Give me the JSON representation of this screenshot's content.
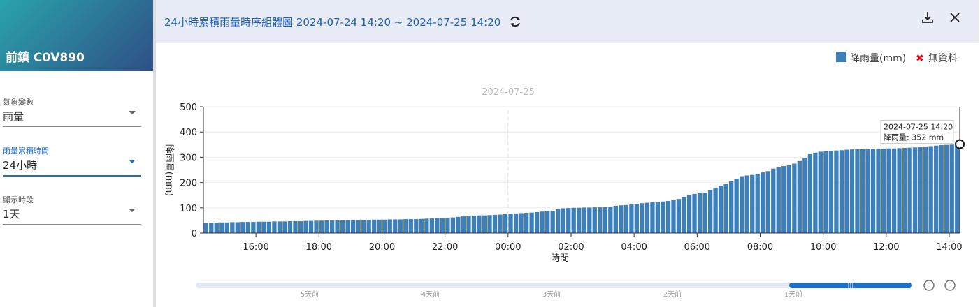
{
  "sidebar": {
    "station": "前鎮 C0V890",
    "fields": [
      {
        "label": "氣象變數",
        "value": "雨量"
      },
      {
        "label": "雨量累積時間",
        "value": "24小時"
      },
      {
        "label": "顯示時段",
        "value": "1天"
      }
    ]
  },
  "header": {
    "title": "24小時累積雨量時序組體圖 2024-07-24 14:20 ~ 2024-07-25 14:20"
  },
  "timeline": {
    "labels": [
      "5天前",
      "4天前",
      "3天前",
      "2天前",
      "1天前"
    ]
  },
  "chart_data": {
    "type": "bar",
    "date_label": "2024-07-25",
    "y_label": "降雨量(mm)",
    "x_label": "時間",
    "no_data_label": "無資料",
    "tooltip": {
      "title": "2024-07-25 14:20",
      "label": "降雨量: 352 mm"
    },
    "x": [
      "2024-07-24 14:30",
      "2024-07-24 14:40",
      "2024-07-24 14:50",
      "2024-07-24 15:00",
      "2024-07-24 15:10",
      "2024-07-24 15:20",
      "2024-07-24 15:30",
      "2024-07-24 15:40",
      "2024-07-24 15:50",
      "2024-07-24 16:00",
      "2024-07-24 16:10",
      "2024-07-24 16:20",
      "2024-07-24 16:30",
      "2024-07-24 16:40",
      "2024-07-24 16:50",
      "2024-07-24 17:00",
      "2024-07-24 17:10",
      "2024-07-24 17:20",
      "2024-07-24 17:30",
      "2024-07-24 17:40",
      "2024-07-24 17:50",
      "2024-07-24 18:00",
      "2024-07-24 18:10",
      "2024-07-24 18:20",
      "2024-07-24 18:30",
      "2024-07-24 18:40",
      "2024-07-24 18:50",
      "2024-07-24 19:00",
      "2024-07-24 19:10",
      "2024-07-24 19:20",
      "2024-07-24 19:30",
      "2024-07-24 19:40",
      "2024-07-24 19:50",
      "2024-07-24 20:00",
      "2024-07-24 20:10",
      "2024-07-24 20:20",
      "2024-07-24 20:30",
      "2024-07-24 20:40",
      "2024-07-24 20:50",
      "2024-07-24 21:00",
      "2024-07-24 21:10",
      "2024-07-24 21:20",
      "2024-07-24 21:30",
      "2024-07-24 21:40",
      "2024-07-24 21:50",
      "2024-07-24 22:00",
      "2024-07-24 22:10",
      "2024-07-24 22:20",
      "2024-07-24 22:30",
      "2024-07-24 22:40",
      "2024-07-24 22:50",
      "2024-07-24 23:00",
      "2024-07-24 23:10",
      "2024-07-24 23:20",
      "2024-07-24 23:30",
      "2024-07-24 23:40",
      "2024-07-24 23:50",
      "2024-07-25 00:00",
      "2024-07-25 00:10",
      "2024-07-25 00:20",
      "2024-07-25 00:30",
      "2024-07-25 00:40",
      "2024-07-25 00:50",
      "2024-07-25 01:00",
      "2024-07-25 01:10",
      "2024-07-25 01:20",
      "2024-07-25 01:30",
      "2024-07-25 01:40",
      "2024-07-25 01:50",
      "2024-07-25 02:00",
      "2024-07-25 02:10",
      "2024-07-25 02:20",
      "2024-07-25 02:30",
      "2024-07-25 02:40",
      "2024-07-25 02:50",
      "2024-07-25 03:00",
      "2024-07-25 03:10",
      "2024-07-25 03:20",
      "2024-07-25 03:30",
      "2024-07-25 03:40",
      "2024-07-25 03:50",
      "2024-07-25 04:00",
      "2024-07-25 04:10",
      "2024-07-25 04:20",
      "2024-07-25 04:30",
      "2024-07-25 04:40",
      "2024-07-25 04:50",
      "2024-07-25 05:00",
      "2024-07-25 05:10",
      "2024-07-25 05:20",
      "2024-07-25 05:30",
      "2024-07-25 05:40",
      "2024-07-25 05:50",
      "2024-07-25 06:00",
      "2024-07-25 06:10",
      "2024-07-25 06:20",
      "2024-07-25 06:30",
      "2024-07-25 06:40",
      "2024-07-25 06:50",
      "2024-07-25 07:00",
      "2024-07-25 07:10",
      "2024-07-25 07:20",
      "2024-07-25 07:30",
      "2024-07-25 07:40",
      "2024-07-25 07:50",
      "2024-07-25 08:00",
      "2024-07-25 08:10",
      "2024-07-25 08:20",
      "2024-07-25 08:30",
      "2024-07-25 08:40",
      "2024-07-25 08:50",
      "2024-07-25 09:00",
      "2024-07-25 09:10",
      "2024-07-25 09:20",
      "2024-07-25 09:30",
      "2024-07-25 09:40",
      "2024-07-25 09:50",
      "2024-07-25 10:00",
      "2024-07-25 10:10",
      "2024-07-25 10:20",
      "2024-07-25 10:30",
      "2024-07-25 10:40",
      "2024-07-25 10:50",
      "2024-07-25 11:00",
      "2024-07-25 11:10",
      "2024-07-25 11:20",
      "2024-07-25 11:30",
      "2024-07-25 11:40",
      "2024-07-25 11:50",
      "2024-07-25 12:00",
      "2024-07-25 12:10",
      "2024-07-25 12:20",
      "2024-07-25 12:30",
      "2024-07-25 12:40",
      "2024-07-25 12:50",
      "2024-07-25 13:00",
      "2024-07-25 13:10",
      "2024-07-25 13:20",
      "2024-07-25 13:30",
      "2024-07-25 13:40",
      "2024-07-25 13:50",
      "2024-07-25 14:00",
      "2024-07-25 14:10",
      "2024-07-25 14:20"
    ],
    "series": [
      {
        "name": "降雨量(mm)",
        "color": "#3f7fb8",
        "values": [
          40,
          41,
          41,
          42,
          42,
          43,
          43,
          44,
          44,
          44,
          45,
          45,
          45,
          46,
          46,
          46,
          47,
          47,
          47,
          48,
          48,
          49,
          49,
          50,
          50,
          50,
          51,
          51,
          51,
          52,
          52,
          52,
          53,
          53,
          53,
          54,
          54,
          54,
          55,
          55,
          55,
          56,
          57,
          58,
          59,
          60,
          61,
          62,
          64,
          66,
          68,
          69,
          70,
          70,
          71,
          72,
          73,
          75,
          77,
          78,
          79,
          80,
          81,
          83,
          85,
          86,
          88,
          95,
          98,
          99,
          100,
          100,
          101,
          101,
          102,
          102,
          103,
          103,
          108,
          110,
          111,
          113,
          116,
          118,
          120,
          122,
          124,
          125,
          127,
          130,
          135,
          142,
          150,
          155,
          158,
          160,
          170,
          180,
          188,
          195,
          205,
          215,
          225,
          228,
          230,
          235,
          240,
          245,
          255,
          260,
          265,
          268,
          275,
          285,
          298,
          312,
          318,
          322,
          324,
          325,
          327,
          328,
          330,
          331,
          332,
          332,
          333,
          333,
          334,
          334,
          335,
          335,
          336,
          337,
          338,
          339,
          340,
          342,
          344,
          346,
          348,
          349,
          350,
          352
        ]
      }
    ],
    "xlim": [
      "2024-07-24 14:20",
      "2024-07-25 14:20"
    ],
    "xticks": [
      {
        "value": "2024-07-24 16:00",
        "label": "16:00"
      },
      {
        "value": "2024-07-24 18:00",
        "label": "18:00"
      },
      {
        "value": "2024-07-24 20:00",
        "label": "20:00"
      },
      {
        "value": "2024-07-24 22:00",
        "label": "22:00"
      },
      {
        "value": "2024-07-25 00:00",
        "label": "00:00"
      },
      {
        "value": "2024-07-25 02:00",
        "label": "02:00"
      },
      {
        "value": "2024-07-25 04:00",
        "label": "04:00"
      },
      {
        "value": "2024-07-25 06:00",
        "label": "06:00"
      },
      {
        "value": "2024-07-25 08:00",
        "label": "08:00"
      },
      {
        "value": "2024-07-25 10:00",
        "label": "10:00"
      },
      {
        "value": "2024-07-25 12:00",
        "label": "12:00"
      },
      {
        "value": "2024-07-25 14:00",
        "label": "14:00"
      }
    ],
    "ylim": [
      0,
      500
    ],
    "yticks": [
      0,
      100,
      200,
      300,
      400,
      500
    ],
    "grid": true,
    "legend": "top-right"
  }
}
